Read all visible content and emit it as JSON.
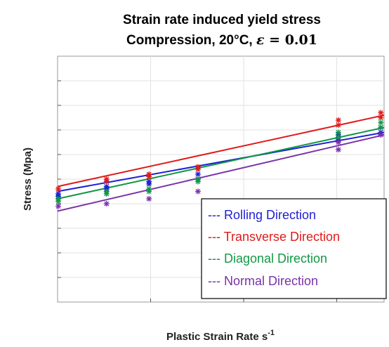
{
  "chart_data": {
    "type": "scatter",
    "title_line1": "Strain rate induced yield stress",
    "title_line2_prefix": "Compression, 20°C, ",
    "title_line2_symbol": "ε",
    "title_line2_eq": " = ",
    "title_line2_value": "0.01",
    "xlabel": "Plastic Strain Rate s",
    "xlabel_sup": "-1",
    "ylabel": "Stress (Mpa)",
    "grid": true,
    "legend_position": "bottom-right",
    "series": [
      {
        "name": "--- Rolling Direction",
        "color": "#1f1fd6",
        "fit": [
          [
            0.0,
            0.45
          ],
          [
            1.0,
            0.69
          ]
        ],
        "points": [
          [
            0.0,
            0.44
          ],
          [
            0.0,
            0.43
          ],
          [
            0.15,
            0.47
          ],
          [
            0.15,
            0.46
          ],
          [
            0.28,
            0.49
          ],
          [
            0.28,
            0.48
          ],
          [
            0.43,
            0.52
          ],
          [
            0.43,
            0.5
          ],
          [
            0.86,
            0.68
          ],
          [
            0.86,
            0.66
          ],
          [
            0.99,
            0.71
          ],
          [
            0.99,
            0.69
          ]
        ]
      },
      {
        "name": "--- Transverse Direction",
        "color": "#e01b1b",
        "fit": [
          [
            0.0,
            0.47
          ],
          [
            1.0,
            0.76
          ]
        ],
        "points": [
          [
            0.0,
            0.46
          ],
          [
            0.15,
            0.5
          ],
          [
            0.15,
            0.49
          ],
          [
            0.28,
            0.52
          ],
          [
            0.28,
            0.51
          ],
          [
            0.43,
            0.55
          ],
          [
            0.43,
            0.54
          ],
          [
            0.86,
            0.74
          ],
          [
            0.86,
            0.72
          ],
          [
            0.99,
            0.77
          ],
          [
            0.99,
            0.75
          ]
        ]
      },
      {
        "name": "--- Diagonal Direction",
        "color": "#119944",
        "fit": [
          [
            0.0,
            0.42
          ],
          [
            1.0,
            0.71
          ]
        ],
        "points": [
          [
            0.0,
            0.42
          ],
          [
            0.0,
            0.41
          ],
          [
            0.15,
            0.45
          ],
          [
            0.15,
            0.44
          ],
          [
            0.28,
            0.46
          ],
          [
            0.28,
            0.45
          ],
          [
            0.43,
            0.5
          ],
          [
            0.43,
            0.49
          ],
          [
            0.86,
            0.69
          ],
          [
            0.86,
            0.67
          ],
          [
            0.99,
            0.73
          ],
          [
            0.99,
            0.71
          ]
        ]
      },
      {
        "name": "--- Normal Direction",
        "color": "#7a32a8",
        "fit": [
          [
            0.0,
            0.37
          ],
          [
            1.0,
            0.68
          ]
        ],
        "points": [
          [
            0.0,
            0.39
          ],
          [
            0.15,
            0.4
          ],
          [
            0.28,
            0.42
          ],
          [
            0.43,
            0.45
          ],
          [
            0.86,
            0.65
          ],
          [
            0.86,
            0.62
          ],
          [
            0.99,
            0.68
          ]
        ]
      }
    ],
    "xlim": [
      0,
      1
    ],
    "ylim": [
      0,
      1
    ],
    "x_gridlines": [
      0.285,
      0.57,
      0.855
    ],
    "y_gridlines": [
      0.1,
      0.2,
      0.3,
      0.4,
      0.5,
      0.6,
      0.7,
      0.8,
      0.9
    ]
  }
}
